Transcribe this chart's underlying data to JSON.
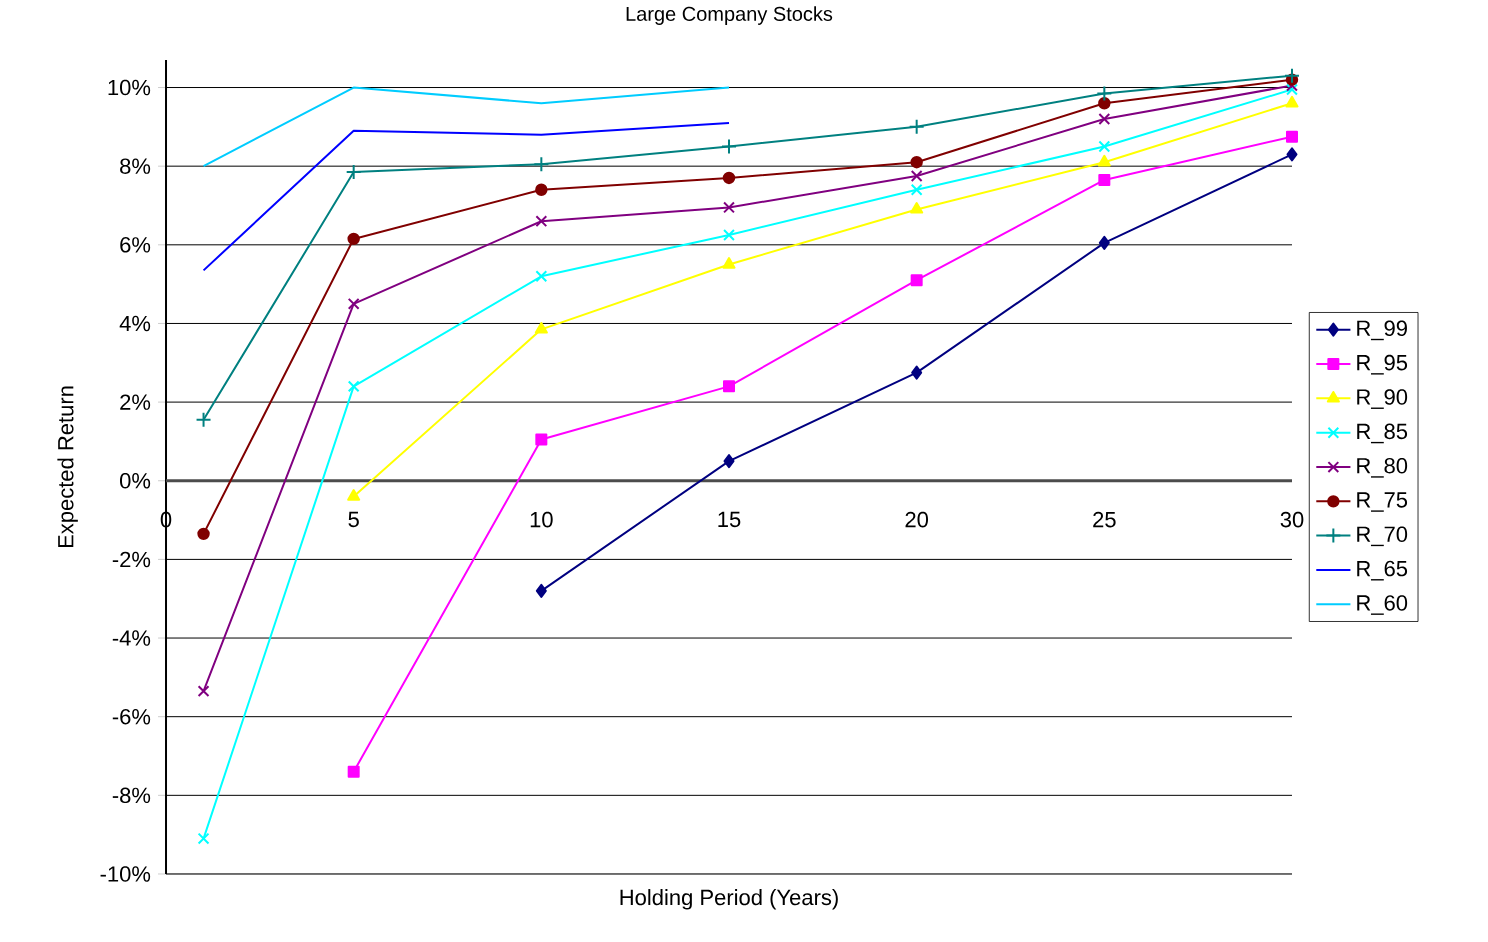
{
  "chart_data": {
    "type": "line",
    "title": "Large Company Stocks",
    "xlabel": "Holding Period (Years)",
    "ylabel": "Expected Return",
    "x": [
      1,
      5,
      10,
      15,
      20,
      25,
      30
    ],
    "xlim": [
      0,
      30
    ],
    "xticks": [
      0,
      5,
      10,
      15,
      20,
      25,
      30
    ],
    "ylim": [
      -10,
      10.7
    ],
    "yticks": [
      {
        "value": -10,
        "label": "-10%"
      },
      {
        "value": -8,
        "label": "-8%"
      },
      {
        "value": -6,
        "label": "-6%"
      },
      {
        "value": -4,
        "label": "-4%"
      },
      {
        "value": -2,
        "label": "-2%"
      },
      {
        "value": 0,
        "label": "0%"
      },
      {
        "value": 2,
        "label": "2%"
      },
      {
        "value": 4,
        "label": "4%"
      },
      {
        "value": 6,
        "label": "6%"
      },
      {
        "value": 8,
        "label": "8%"
      },
      {
        "value": 10,
        "label": "10%"
      }
    ],
    "grid": "y",
    "legend": "right",
    "line_style": "solid",
    "series": [
      {
        "name": "R_99",
        "color": "#000080",
        "marker": "diamond",
        "values": [
          null,
          null,
          -2.8,
          0.5,
          2.75,
          6.05,
          8.3
        ]
      },
      {
        "name": "R_95",
        "color": "#ff00ff",
        "marker": "square",
        "values": [
          null,
          -7.4,
          1.05,
          2.4,
          5.1,
          7.65,
          8.75
        ]
      },
      {
        "name": "R_90",
        "color": "#ffff00",
        "marker": "triangle",
        "values": [
          null,
          -0.4,
          3.85,
          5.5,
          6.9,
          8.1,
          9.6
        ]
      },
      {
        "name": "R_85",
        "color": "#00ffff",
        "marker": "cross",
        "values": [
          -9.1,
          2.4,
          5.2,
          6.25,
          7.4,
          8.5,
          9.95
        ]
      },
      {
        "name": "R_80",
        "color": "#800080",
        "marker": "cross",
        "values": [
          -5.35,
          4.5,
          6.6,
          6.95,
          7.75,
          9.2,
          10.05
        ]
      },
      {
        "name": "R_75",
        "color": "#800000",
        "marker": "circle",
        "values": [
          -1.35,
          6.15,
          7.4,
          7.7,
          8.1,
          9.6,
          10.2
        ]
      },
      {
        "name": "R_70",
        "color": "#008080",
        "marker": "plus",
        "values": [
          1.55,
          7.85,
          8.05,
          8.5,
          9.0,
          9.85,
          10.3
        ]
      },
      {
        "name": "R_65",
        "color": "#0000ff",
        "marker": "none",
        "values": [
          5.35,
          8.9,
          8.8,
          9.1,
          null,
          null,
          null
        ]
      },
      {
        "name": "R_60",
        "color": "#00ccff",
        "marker": "none",
        "values": [
          8.0,
          10.0,
          9.6,
          10.0,
          null,
          null,
          null
        ]
      }
    ]
  }
}
